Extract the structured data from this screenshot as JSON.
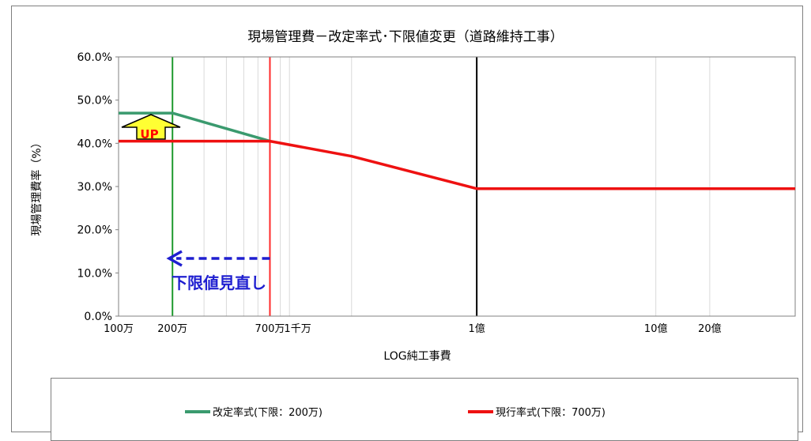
{
  "chart_data": {
    "type": "line",
    "title": "現場管理費－改定率式･下限値変更（道路維持工事）",
    "xlabel": "LOG純工事費",
    "ylabel": "現場管理費率（%）",
    "x_scale": "log",
    "xlim": [
      1000000,
      6000000000
    ],
    "ylim": [
      0,
      0.6
    ],
    "y_ticks": [
      {
        "value": 0.0,
        "label": "0.0%"
      },
      {
        "value": 0.1,
        "label": "10.0%"
      },
      {
        "value": 0.2,
        "label": "20.0%"
      },
      {
        "value": 0.3,
        "label": "30.0%"
      },
      {
        "value": 0.4,
        "label": "40.0%"
      },
      {
        "value": 0.5,
        "label": "50.0%"
      },
      {
        "value": 0.6,
        "label": "60.0%"
      }
    ],
    "x_ticks": [
      {
        "value": 1000000,
        "label": "100万"
      },
      {
        "value": 2000000,
        "label": "200万"
      },
      {
        "value": 7000000,
        "label": "700万"
      },
      {
        "value": 10000000,
        "label": "1千万"
      },
      {
        "value": 100000000,
        "label": "1億"
      },
      {
        "value": 1000000000,
        "label": "10億"
      },
      {
        "value": 2000000000,
        "label": "20億"
      }
    ],
    "grid_x": [
      3000000,
      4000000,
      5000000,
      6000000,
      8000000,
      9000000,
      20000000,
      1000000000,
      2000000000
    ],
    "vlines": [
      {
        "x": 2000000,
        "color": "#1e9a2e"
      },
      {
        "x": 7000000,
        "color": "#ff2a2a"
      },
      {
        "x": 100000000,
        "color": "#000000"
      }
    ],
    "series": [
      {
        "name": "改定率式(下限：200万)",
        "color": "#3a9a6e",
        "points": [
          [
            1000000,
            0.47
          ],
          [
            2000000,
            0.47
          ],
          [
            7000000,
            0.405
          ]
        ]
      },
      {
        "name": "現行率式(下限：700万)",
        "color": "#ee1111",
        "points": [
          [
            1000000,
            0.405
          ],
          [
            7000000,
            0.405
          ],
          [
            20000000,
            0.37
          ],
          [
            100000000,
            0.295
          ],
          [
            6000000000,
            0.295
          ]
        ]
      }
    ],
    "annotations": {
      "up_label": "UP",
      "lower_limit_label": "下限値見直し"
    },
    "legend_position": "bottom"
  }
}
